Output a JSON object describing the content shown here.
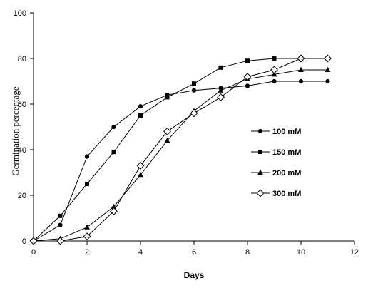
{
  "chart_data": {
    "type": "line",
    "xlabel": "Days",
    "ylabel": "Germination percentage",
    "xlim": [
      0,
      12
    ],
    "ylim": [
      0,
      100
    ],
    "xticks": [
      0,
      2,
      4,
      6,
      8,
      10,
      12
    ],
    "yticks": [
      0,
      20,
      40,
      60,
      80,
      100
    ],
    "ytick_labels": [
      "0",
      "20",
      "40",
      "60",
      "80",
      "100"
    ],
    "grid": false,
    "legend_position": "right",
    "series": [
      {
        "name": "100 mM",
        "marker": "circle",
        "x": [
          0,
          1,
          2,
          3,
          4,
          5,
          6,
          7,
          8,
          9,
          10,
          11
        ],
        "y": [
          0,
          7,
          37,
          50,
          59,
          64,
          66,
          67,
          68,
          70,
          70,
          70
        ]
      },
      {
        "name": "150 mM",
        "marker": "square",
        "x": [
          0,
          1,
          2,
          3,
          4,
          5,
          6,
          7,
          8,
          9,
          10,
          11
        ],
        "y": [
          0,
          11,
          25,
          39,
          55,
          63,
          69,
          76,
          79,
          80,
          80,
          80
        ]
      },
      {
        "name": "200 mM",
        "marker": "triangle",
        "x": [
          0,
          1,
          2,
          3,
          4,
          5,
          6,
          7,
          8,
          9,
          10,
          11
        ],
        "y": [
          0,
          1,
          6,
          15,
          29,
          44,
          57,
          66,
          71,
          73,
          75,
          75
        ]
      },
      {
        "name": "300 mM",
        "marker": "diamond",
        "x": [
          0,
          1,
          2,
          3,
          4,
          5,
          6,
          7,
          8,
          9,
          10,
          11
        ],
        "y": [
          0,
          0,
          2,
          13,
          33,
          48,
          56,
          63,
          72,
          75,
          80,
          80
        ]
      }
    ]
  }
}
